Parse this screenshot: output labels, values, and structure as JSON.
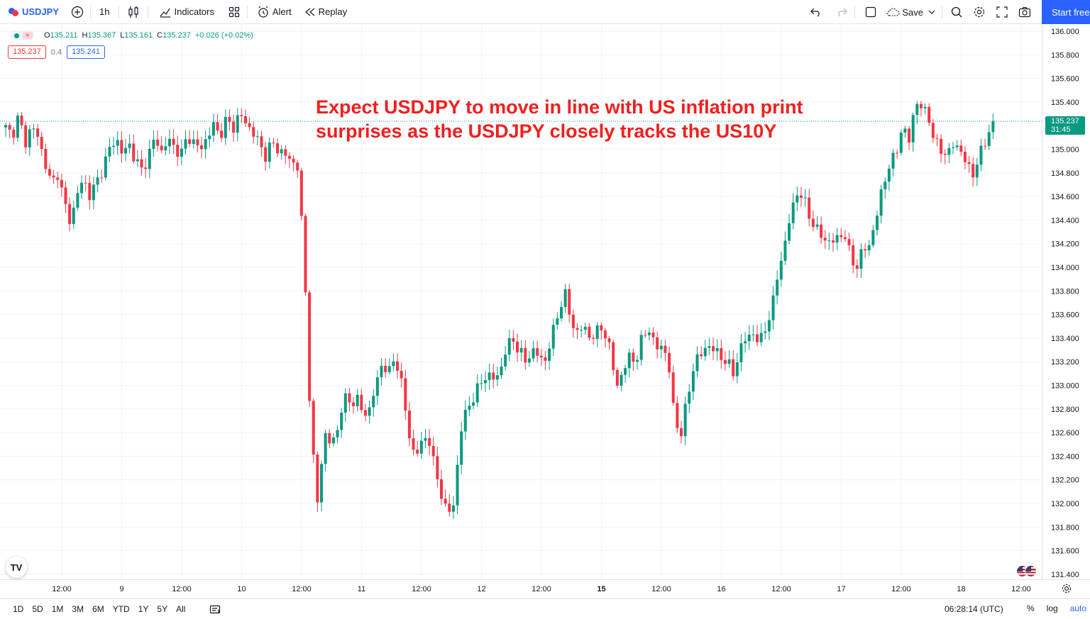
{
  "toolbar": {
    "symbol": "USDJPY",
    "interval": "1h",
    "indicators_label": "Indicators",
    "alert_label": "Alert",
    "replay_label": "Replay",
    "save_label": "Save",
    "start_label": "Start free"
  },
  "legend": {
    "open_key": "O",
    "open": "135.211",
    "high_key": "H",
    "high": "135.367",
    "low_key": "L",
    "low": "135.161",
    "close_key": "C",
    "close": "135.237",
    "change": "+0.026 (+0.02%)",
    "sell_price": "135.237",
    "spread": "0.4",
    "buy_price": "135.241"
  },
  "annotation": {
    "line1": "Expect USDJPY to move in line with US inflation print",
    "line2": "surprises as the USDJPY closely tracks the US10Y"
  },
  "price_tag": {
    "price": "135.237",
    "countdown": "31:45"
  },
  "bottombar": {
    "ranges": [
      "1D",
      "5D",
      "1M",
      "3M",
      "6M",
      "YTD",
      "1Y",
      "5Y",
      "All"
    ],
    "clock": "06:28:14 (UTC)",
    "percent_label": "%",
    "log_label": "log",
    "auto_label": "auto"
  },
  "colors": {
    "up": "#089981",
    "down": "#f23645",
    "accent": "#2962ff",
    "annotation": "#f21e1e"
  },
  "chart_data": {
    "type": "candlestick",
    "interval": "1h",
    "y_ticks": [
      "136.000",
      "135.800",
      "135.600",
      "135.400",
      "135.200",
      "135.000",
      "134.800",
      "134.600",
      "134.400",
      "134.200",
      "134.000",
      "133.800",
      "133.600",
      "133.400",
      "133.200",
      "133.000",
      "132.800",
      "132.600",
      "132.400",
      "132.200",
      "132.000",
      "131.800",
      "131.600",
      "131.400"
    ],
    "ylim": [
      131.4,
      136.0
    ],
    "x_ticks": [
      {
        "label": "12:00",
        "bold": false
      },
      {
        "label": "9",
        "bold": false
      },
      {
        "label": "12:00",
        "bold": false
      },
      {
        "label": "10",
        "bold": false
      },
      {
        "label": "12:00",
        "bold": false
      },
      {
        "label": "11",
        "bold": false
      },
      {
        "label": "12:00",
        "bold": false
      },
      {
        "label": "12",
        "bold": false
      },
      {
        "label": "12:00",
        "bold": false
      },
      {
        "label": "15",
        "bold": true
      },
      {
        "label": "12:00",
        "bold": false
      },
      {
        "label": "16",
        "bold": false
      },
      {
        "label": "12:00",
        "bold": false
      },
      {
        "label": "17",
        "bold": false
      },
      {
        "label": "12:00",
        "bold": false
      },
      {
        "label": "18",
        "bold": false
      },
      {
        "label": "12:00",
        "bold": false
      }
    ],
    "last_price": 135.237,
    "close_path": [
      135.18,
      135.12,
      135.28,
      135.05,
      135.2,
      135.1,
      134.9,
      134.7,
      134.8,
      134.55,
      134.38,
      134.62,
      134.75,
      134.6,
      134.72,
      134.85,
      135.0,
      135.1,
      134.95,
      135.05,
      134.9,
      134.82,
      134.95,
      135.1,
      134.98,
      135.08,
      135.02,
      134.95,
      135.12,
      135.05,
      135.0,
      135.1,
      135.2,
      135.12,
      135.25,
      135.18,
      135.3,
      135.22,
      135.15,
      135.05,
      134.95,
      135.05,
      135.0,
      134.95,
      134.9,
      134.85,
      134.0,
      132.6,
      132.0,
      132.6,
      132.5,
      132.6,
      132.9,
      132.85,
      132.9,
      132.75,
      132.8,
      133.0,
      133.2,
      133.1,
      133.25,
      133.0,
      132.6,
      132.4,
      132.5,
      132.6,
      132.3,
      132.1,
      131.9,
      132.0,
      132.6,
      132.8,
      132.9,
      133.0,
      133.1,
      133.05,
      133.1,
      133.3,
      133.4,
      133.3,
      133.2,
      133.3,
      133.25,
      133.2,
      133.4,
      133.6,
      133.8,
      133.55,
      133.45,
      133.5,
      133.4,
      133.45,
      133.5,
      133.3,
      133.0,
      133.1,
      133.25,
      133.2,
      133.4,
      133.5,
      133.3,
      133.35,
      133.2,
      132.7,
      132.6,
      132.9,
      133.2,
      133.25,
      133.35,
      133.3,
      133.25,
      133.2,
      133.1,
      133.3,
      133.4,
      133.45,
      133.35,
      133.5,
      133.65,
      134.0,
      134.2,
      134.5,
      134.65,
      134.55,
      134.4,
      134.3,
      134.25,
      134.2,
      134.25,
      134.3,
      134.1,
      134.0,
      134.15,
      134.2,
      134.4,
      134.7,
      134.85,
      134.95,
      135.2,
      135.05,
      135.4,
      135.35,
      135.3,
      135.05,
      135.0,
      134.95,
      135.05,
      135.0,
      134.85,
      134.8,
      134.95,
      135.1,
      135.25
    ]
  }
}
